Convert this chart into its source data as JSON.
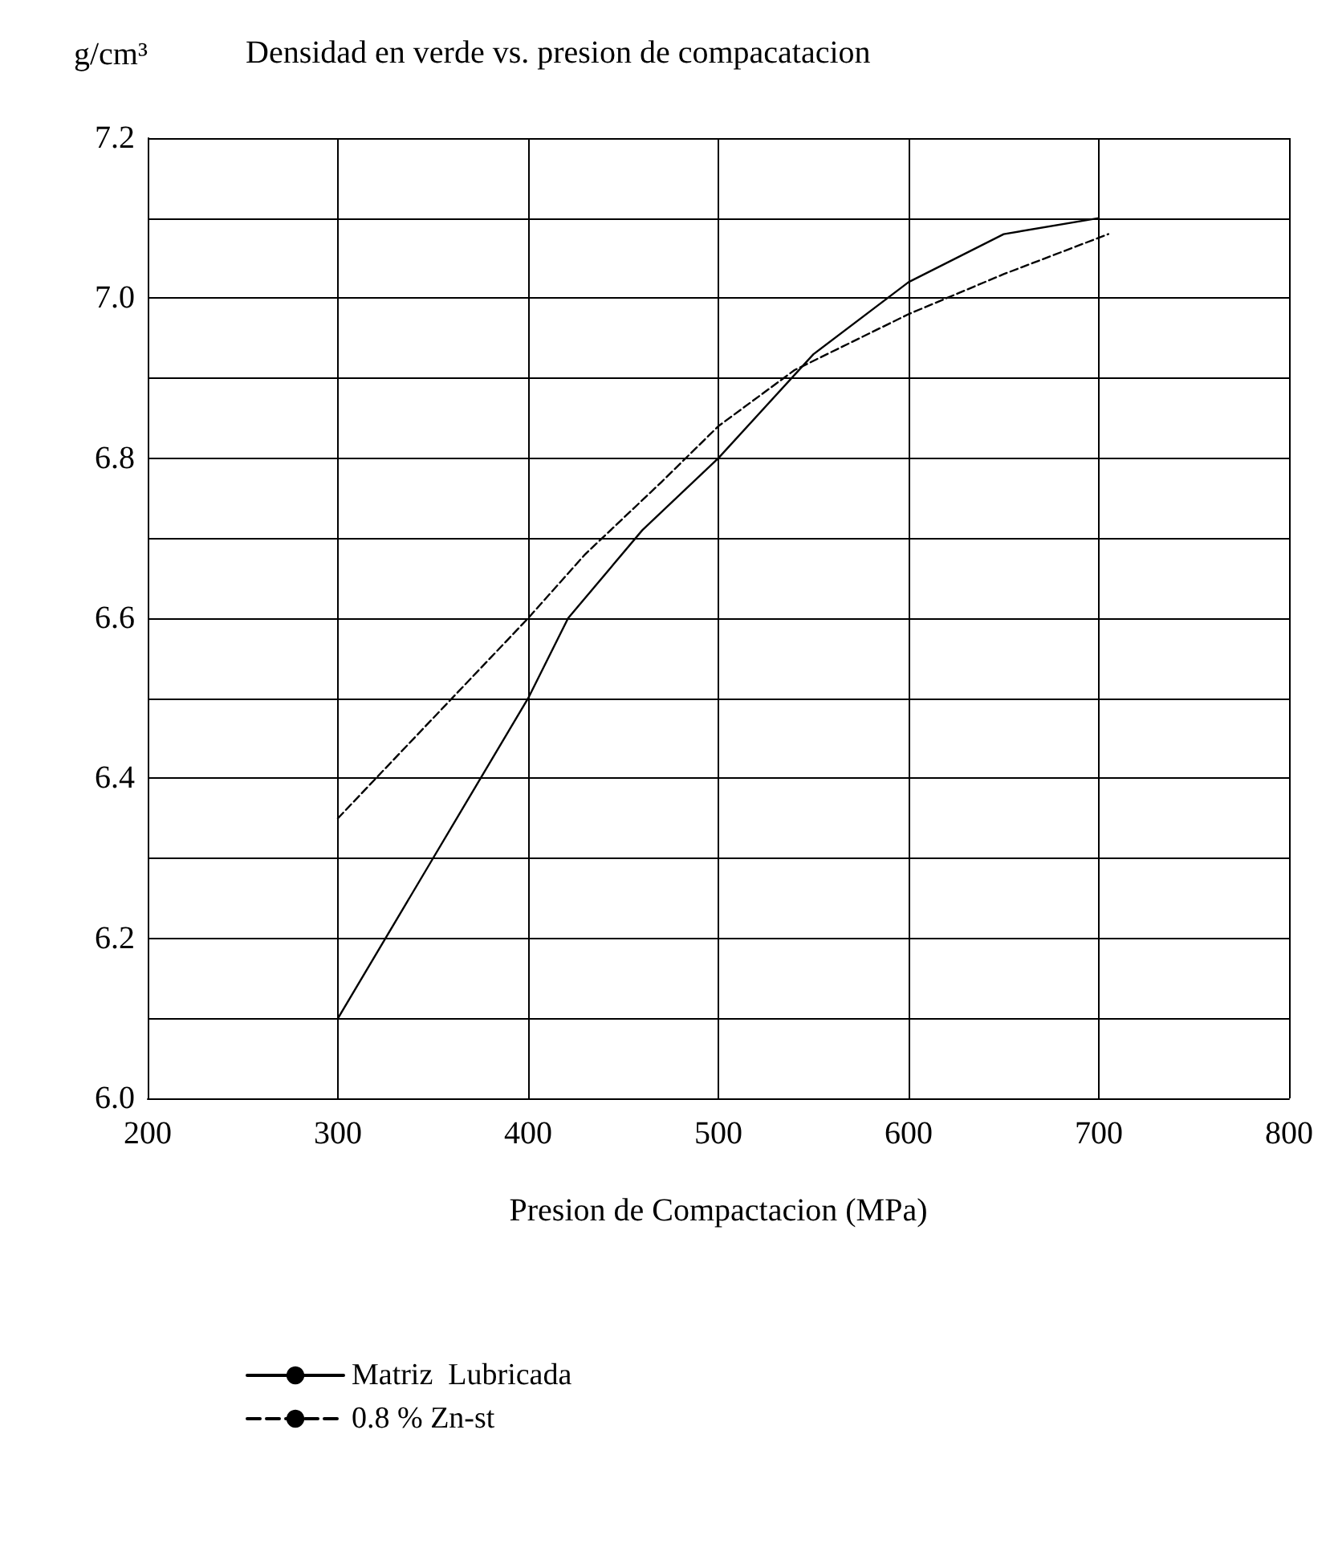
{
  "chart_data": {
    "type": "line",
    "title": "Densidad en verde vs. presion de compacatacion",
    "xlabel": "Presion de Compactacion (MPa)",
    "ylabel": "g/cm³",
    "xlim": [
      200,
      800
    ],
    "xticks": [
      200,
      300,
      400,
      500,
      600,
      700,
      800
    ],
    "ylim": [
      6.0,
      7.2
    ],
    "yticks": [
      {
        "value": 6.0,
        "label": "6.0"
      },
      {
        "value": 6.1,
        "label": null
      },
      {
        "value": 6.2,
        "label": "6.2"
      },
      {
        "value": 6.3,
        "label": null
      },
      {
        "value": 6.4,
        "label": "6.4"
      },
      {
        "value": 6.5,
        "label": null
      },
      {
        "value": 6.6,
        "label": "6.6"
      },
      {
        "value": 6.7,
        "label": null
      },
      {
        "value": 6.8,
        "label": "6.8"
      },
      {
        "value": 6.9,
        "label": null
      },
      {
        "value": 7.0,
        "label": "7.0"
      },
      {
        "value": 7.1,
        "label": null
      },
      {
        "value": 7.2,
        "label": "7.2"
      }
    ],
    "grid": true,
    "legend": "bottom left",
    "marker": "none",
    "series": [
      {
        "name": "Matriz  Lubricada",
        "color": "#000000",
        "line_style": "solid",
        "x": [
          300,
          350,
          400,
          421,
          460,
          500,
          550,
          600,
          650,
          700
        ],
        "values": [
          6.1,
          6.3,
          6.5,
          6.6,
          6.71,
          6.8,
          6.93,
          7.02,
          7.08,
          7.1
        ]
      },
      {
        "name": "0.8 % Zn-st",
        "color": "#000000",
        "line_style": "dashed",
        "x": [
          300,
          360,
          400,
          430,
          470,
          500,
          540,
          600,
          650,
          705
        ],
        "values": [
          6.35,
          6.5,
          6.6,
          6.68,
          6.77,
          6.84,
          6.91,
          6.98,
          7.03,
          7.08
        ]
      }
    ]
  }
}
